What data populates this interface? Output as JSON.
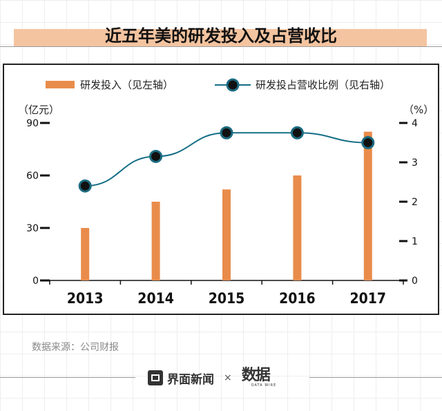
{
  "page": {
    "title": "近五年美的研发投入及占营收比",
    "source": "数据来源：公司财报",
    "brand": "界面新闻",
    "separator": "×",
    "watermark": {
      "cn": "数据",
      "en": "DATA WIRE"
    }
  },
  "colors": {
    "bar": "#e98c4b",
    "line": "#156e86",
    "marker_fill": "#111111",
    "marker_ring": "#1c6b80",
    "title_band": "#f4c4a0"
  },
  "chart_data": {
    "type": "bar+line",
    "title": "近五年美的研发投入及占营收比",
    "categories": [
      "2013",
      "2014",
      "2015",
      "2016",
      "2017"
    ],
    "series": [
      {
        "name": "研发投入（见左轴）",
        "type": "bar",
        "axis": "left",
        "values": [
          30,
          45,
          52,
          60,
          85
        ]
      },
      {
        "name": "研发投占营收比例（见右轴）",
        "type": "line",
        "axis": "right",
        "values": [
          2.4,
          3.15,
          3.75,
          3.75,
          3.5
        ]
      }
    ],
    "y_left": {
      "label": "（亿元）",
      "min": 0,
      "max": 90,
      "ticks": [
        0,
        30,
        60,
        90
      ]
    },
    "y_right": {
      "label": "（%）",
      "min": 0,
      "max": 4,
      "ticks": [
        0,
        1,
        2,
        3,
        4
      ]
    },
    "legend": "top",
    "grid": false
  }
}
